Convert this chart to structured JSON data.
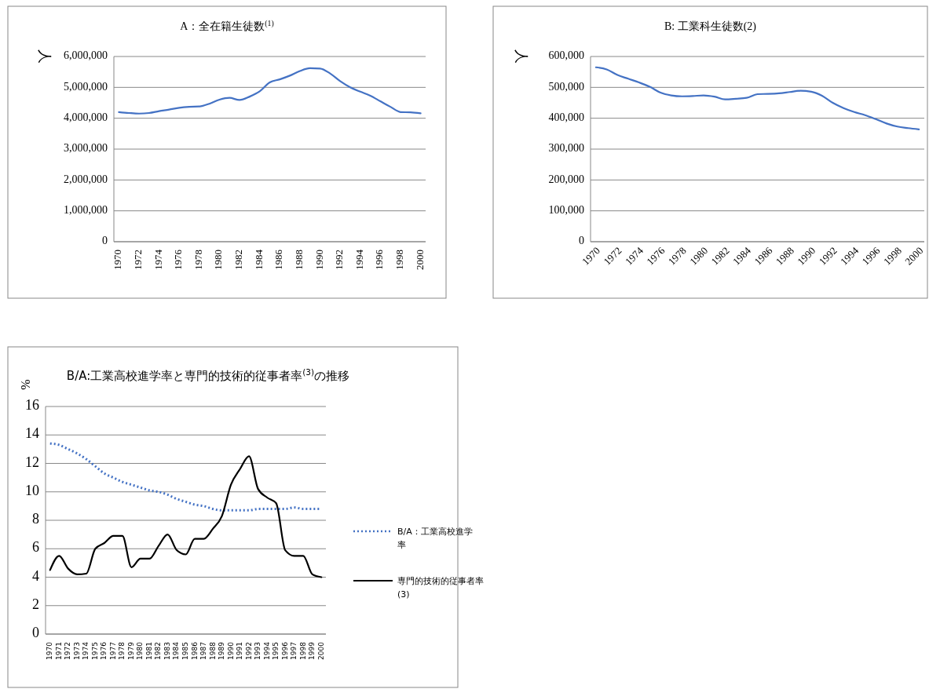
{
  "chart_data": [
    {
      "type": "line",
      "title": "A：全在籍生徒数$^{(1)}$",
      "ylabel": "人",
      "categories": [
        "1970",
        null,
        "1972",
        null,
        "1974",
        null,
        "1976",
        null,
        "1978",
        null,
        "1980",
        null,
        "1982",
        null,
        "1984",
        null,
        "1986",
        null,
        "1988",
        null,
        "1990",
        null,
        "1992",
        null,
        "1994",
        null,
        "1996",
        null,
        "1998",
        null,
        "2000"
      ],
      "series": [
        {
          "color": "#4472c4",
          "line_style": "solid",
          "values": [
            4200000,
            4170000,
            4150000,
            4170000,
            4230000,
            4280000,
            4340000,
            4370000,
            4380000,
            4470000,
            4600000,
            4660000,
            4590000,
            4700000,
            4870000,
            5160000,
            5260000,
            5380000,
            5530000,
            5620000,
            5610000,
            5450000,
            5200000,
            5000000,
            4860000,
            4730000,
            4550000,
            4370000,
            4200000,
            4190000,
            4160000
          ]
        }
      ],
      "ylim": [
        0,
        6000000
      ],
      "yticks": [
        {
          "value": 0,
          "label": "0"
        },
        {
          "value": 1000000,
          "label": "1,000,000"
        },
        {
          "value": 2000000,
          "label": "2,000,000"
        },
        {
          "value": 3000000,
          "label": "3,000,000"
        },
        {
          "value": 4000000,
          "label": "4,000,000"
        },
        {
          "value": 5000000,
          "label": "5,000,000"
        },
        {
          "value": 6000000,
          "label": "6,000,000"
        }
      ],
      "grid": "y",
      "legend": false,
      "marker": "none"
    },
    {
      "type": "line",
      "title": "B: 工業科生徒数(2)",
      "ylabel": "人",
      "categories": [
        "1970",
        null,
        "1972",
        null,
        "1974",
        null,
        "1976",
        null,
        "1978",
        null,
        "1980",
        null,
        "1982",
        null,
        "1984",
        null,
        "1986",
        null,
        "1988",
        null,
        "1990",
        null,
        "1992",
        null,
        "1994",
        null,
        "1996",
        null,
        "1998",
        null,
        "2000"
      ],
      "series": [
        {
          "color": "#4472c4",
          "line_style": "solid",
          "values": [
            565000,
            558000,
            540000,
            528000,
            516000,
            502000,
            483000,
            474000,
            471000,
            472000,
            474000,
            470000,
            461000,
            463000,
            466000,
            478000,
            479000,
            481000,
            485000,
            489000,
            486000,
            473000,
            450000,
            433000,
            420000,
            410000,
            397000,
            383000,
            373000,
            368000,
            364000
          ]
        }
      ],
      "ylim": [
        0,
        600000
      ],
      "yticks": [
        {
          "value": 0,
          "label": "0"
        },
        {
          "value": 100000,
          "label": "100,000"
        },
        {
          "value": 200000,
          "label": "200,000"
        },
        {
          "value": 300000,
          "label": "300,000"
        },
        {
          "value": 400000,
          "label": "400,000"
        },
        {
          "value": 500000,
          "label": "500,000"
        },
        {
          "value": 600000,
          "label": "600,000"
        }
      ],
      "grid": "y",
      "legend": false,
      "marker": "none"
    },
    {
      "type": "line",
      "title": "B/A:工業高校進学率と専門的技術的従事者率$^{(3)}$の推移",
      "ylabel": "%",
      "categories": [
        "1970",
        "1971",
        "1972",
        "1973",
        "1974",
        "1975",
        "1976",
        "1977",
        "1978",
        "1979",
        "1980",
        "1981",
        "1982",
        "1983",
        "1984",
        "1985",
        "1986",
        "1987",
        "1988",
        "1989",
        "1990",
        "1991",
        "1992",
        "1993",
        "1994",
        "1995",
        "1996",
        "1997",
        "1998",
        "1999",
        "2000"
      ],
      "series": [
        {
          "name": "B/A：工業高校進学率",
          "color": "#4472c4",
          "line_style": "dotted",
          "values": [
            13.4,
            13.3,
            13.0,
            12.7,
            12.3,
            11.8,
            11.3,
            11.0,
            10.7,
            10.5,
            10.3,
            10.1,
            10.0,
            9.8,
            9.5,
            9.3,
            9.1,
            9.0,
            8.8,
            8.7,
            8.7,
            8.7,
            8.7,
            8.8,
            8.8,
            8.8,
            8.8,
            8.9,
            8.8,
            8.8,
            8.8
          ]
        },
        {
          "name": "専門的技術的従事者率(3)",
          "color": "#000000",
          "line_style": "solid",
          "values": [
            4.5,
            5.5,
            4.6,
            4.2,
            4.25,
            6.0,
            6.4,
            6.9,
            6.9,
            4.7,
            5.3,
            5.3,
            6.2,
            7.0,
            5.9,
            5.6,
            6.7,
            6.7,
            7.4,
            8.3,
            10.5,
            11.6,
            12.5,
            10.2,
            9.6,
            9.2,
            5.9,
            5.5,
            5.5,
            4.2,
            4.0
          ]
        }
      ],
      "ylim": [
        0,
        16
      ],
      "yticks": [
        0,
        2,
        4,
        6,
        8,
        10,
        12,
        14,
        16
      ],
      "grid": "y",
      "legend": "right",
      "marker": "none"
    }
  ]
}
